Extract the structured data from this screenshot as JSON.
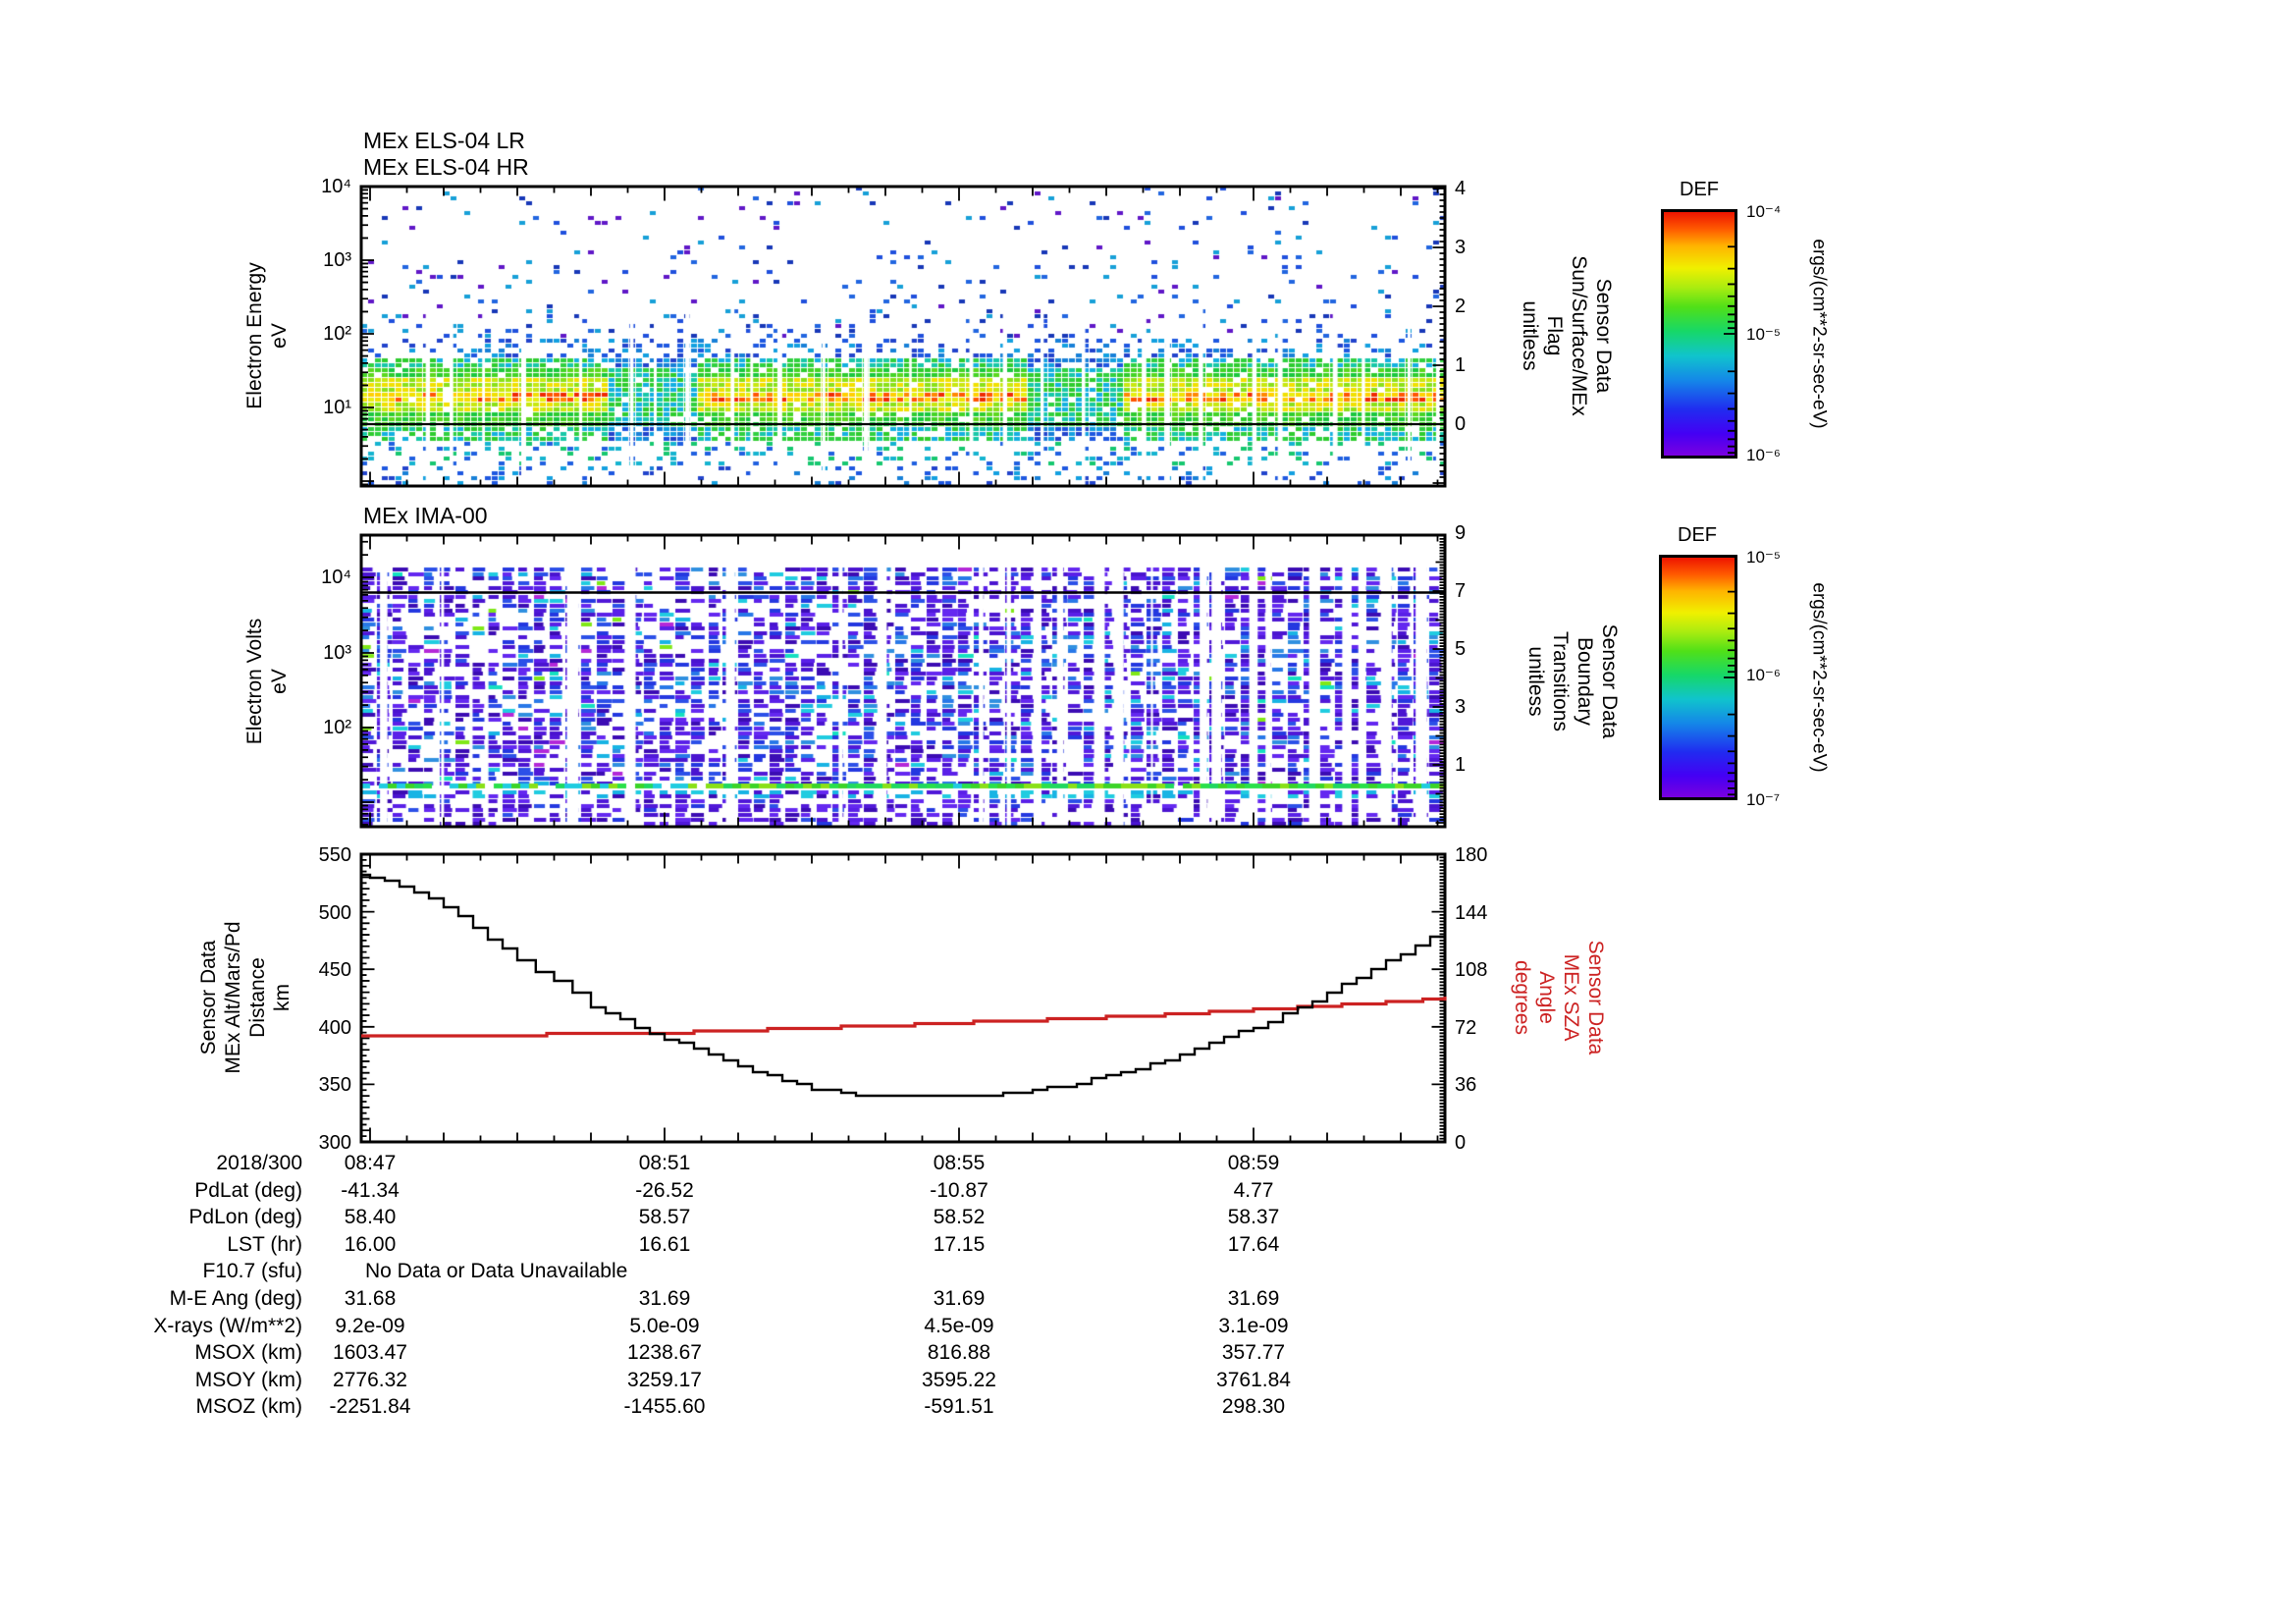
{
  "els": {
    "title_lr": "MEx ELS-04 LR",
    "title_hr": "MEx ELS-04 HR",
    "ylabel": "Electron Energy\neV",
    "yticks": [
      "10⁴",
      "10³",
      "10²",
      "10¹"
    ],
    "right_label": "Sensor Data\nSun/Surface/MEx\nFlag\nunitless",
    "rticks": [
      "4",
      "3",
      "2",
      "1",
      "0"
    ],
    "colorbar": {
      "title": "DEF",
      "ticks": [
        "10⁻⁴",
        "10⁻⁵",
        "10⁻⁶"
      ],
      "units": "ergs/(cm**2-sr-sec-eV)"
    }
  },
  "ima": {
    "title": "MEx IMA-00",
    "ylabel": "Electron Volts\neV",
    "yticks": [
      "10⁴",
      "10³",
      "10²"
    ],
    "right_label": "Sensor Data\nBoundary\nTransitions\nunitless",
    "rticks": [
      "9",
      "7",
      "5",
      "3",
      "1"
    ],
    "colorbar": {
      "title": "DEF",
      "ticks": [
        "10⁻⁵",
        "10⁻⁶",
        "10⁻⁷"
      ],
      "units": "ergs/(cm**2-sr-sec-eV)"
    }
  },
  "alt_panel": {
    "left_label": "Sensor Data\nMEx Alt/Mars/Pd\nDistance\nkm",
    "lticks": [
      "550",
      "500",
      "450",
      "400",
      "350",
      "300"
    ],
    "right_label": "Sensor Data\nMEx SZA\nAngle\ndegrees",
    "rticks": [
      "180",
      "144",
      "108",
      "72",
      "36",
      "0"
    ]
  },
  "xaxis": {
    "date": "2018/300",
    "ticks": [
      "08:47",
      "08:51",
      "08:55",
      "08:59"
    ]
  },
  "table": {
    "rows": [
      {
        "label": "PdLat (deg)",
        "values": [
          "-41.34",
          "-26.52",
          "-10.87",
          "4.77"
        ]
      },
      {
        "label": "PdLon (deg)",
        "values": [
          "58.40",
          "58.57",
          "58.52",
          "58.37"
        ]
      },
      {
        "label": "LST (hr)",
        "values": [
          "16.00",
          "16.61",
          "17.15",
          "17.64"
        ]
      },
      {
        "label": "F10.7 (sfu)",
        "note": "No Data or Data Unavailable"
      },
      {
        "label": "M-E Ang (deg)",
        "values": [
          "31.68",
          "31.69",
          "31.69",
          "31.69"
        ]
      },
      {
        "label": "X-rays (W/m**2)",
        "values": [
          "9.2e-09",
          "5.0e-09",
          "4.5e-09",
          "3.1e-09"
        ]
      },
      {
        "label": "MSOX (km)",
        "values": [
          "1603.47",
          "1238.67",
          "816.88",
          "357.77"
        ]
      },
      {
        "label": "MSOY (km)",
        "values": [
          "2776.32",
          "3259.17",
          "3595.22",
          "3761.84"
        ]
      },
      {
        "label": "MSOZ (km)",
        "values": [
          "-2251.84",
          "-1455.60",
          "-591.51",
          "298.30"
        ]
      }
    ]
  },
  "colors": {
    "accent_red": "#cc2222",
    "frame": "#000000",
    "background": "#ffffff"
  },
  "chart_data": [
    {
      "type": "heatmap",
      "title": "MEx ELS-04 HR",
      "ylabel": "Electron Energy (eV)",
      "y_log_range": [
        1,
        10000
      ],
      "x_range": [
        "08:47",
        "09:02"
      ],
      "z_label": "DEF ergs/(cm**2-sr-sec-eV)",
      "z_log_range": [
        1e-06,
        0.0001
      ],
      "legend_position": "right-colorbar",
      "description": "Intense electron band ~3-50 eV peaking near 15 eV (yellow/red core ~1e-4), scattered low flux (blue, ~1e-6) up to 10 keV; vertical white data gaps each ~30s",
      "flag_overlay": {
        "name": "Sun/Surface/MEx Flag",
        "axis_range": [
          0,
          4
        ],
        "constant_value": 0
      }
    },
    {
      "type": "heatmap",
      "title": "MEx IMA-00",
      "ylabel": "Electron Volts (eV)",
      "y_log_range": [
        5,
        30000
      ],
      "x_range": [
        "08:47",
        "09:02"
      ],
      "z_label": "DEF ergs/(cm**2-sr-sec-eV)",
      "z_log_range": [
        1e-07,
        1e-05
      ],
      "legend_position": "right-colorbar",
      "description": "Dense low-flux purple/blue mosaic across 10 eV - 20 keV; narrow enhanced green line near 17 eV strongest after 08:52",
      "flag_overlay": {
        "name": "Boundary Transitions",
        "axis_range": [
          1,
          9
        ],
        "constant_value": 7
      }
    },
    {
      "type": "line",
      "x_axis": {
        "date": "2018/300",
        "tick_labels": [
          "08:47",
          "08:51",
          "08:55",
          "08:59"
        ],
        "minutes_from_start": [
          0,
          14.6
        ]
      },
      "left_axis": {
        "label": "Sensor Data MEx Alt/Mars/Pd Distance (km)",
        "range": [
          300,
          550
        ]
      },
      "right_axis": {
        "label": "Sensor Data MEx SZA Angle (degrees)",
        "range": [
          0,
          180
        ]
      },
      "series": [
        {
          "name": "MEx Alt/Mars/Pd Distance",
          "axis": "left",
          "units": "km",
          "color": "#000000",
          "points": [
            [
              -0.12,
              531
            ],
            [
              0,
              530
            ],
            [
              0.4,
              522
            ],
            [
              0.8,
              512
            ],
            [
              1.2,
              496
            ],
            [
              1.6,
              477
            ],
            [
              2.0,
              458
            ],
            [
              2.5,
              439
            ],
            [
              3.0,
              418
            ],
            [
              3.6,
              400
            ],
            [
              4.2,
              385
            ],
            [
              4.8,
              371
            ],
            [
              5.4,
              357
            ],
            [
              6.0,
              346
            ],
            [
              6.6,
              341
            ],
            [
              7.2,
              340
            ],
            [
              8.0,
              340
            ],
            [
              8.4,
              340
            ],
            [
              9.0,
              345
            ],
            [
              9.6,
              351
            ],
            [
              10.2,
              361
            ],
            [
              10.8,
              371
            ],
            [
              11.4,
              386
            ],
            [
              12.0,
              400
            ],
            [
              12.6,
              416
            ],
            [
              13.0,
              430
            ],
            [
              13.6,
              450
            ],
            [
              14.2,
              470
            ],
            [
              14.6,
              486
            ]
          ]
        },
        {
          "name": "MEx SZA Angle",
          "axis": "right",
          "units": "degrees",
          "color": "#cc2222",
          "points": [
            [
              -0.12,
              66.2
            ],
            [
              0,
              66.2
            ],
            [
              1,
              66.6
            ],
            [
              2,
              67.0
            ],
            [
              3,
              67.5
            ],
            [
              4,
              68.3
            ],
            [
              5,
              69.6
            ],
            [
              6,
              71.2
            ],
            [
              7,
              72.8
            ],
            [
              8,
              74.5
            ],
            [
              9,
              76.3
            ],
            [
              10,
              78.2
            ],
            [
              11,
              80.2
            ],
            [
              12,
              82.6
            ],
            [
              13,
              85.2
            ],
            [
              13.8,
              87.4
            ],
            [
              14.3,
              89.0
            ],
            [
              14.6,
              90.2
            ]
          ]
        }
      ]
    }
  ]
}
